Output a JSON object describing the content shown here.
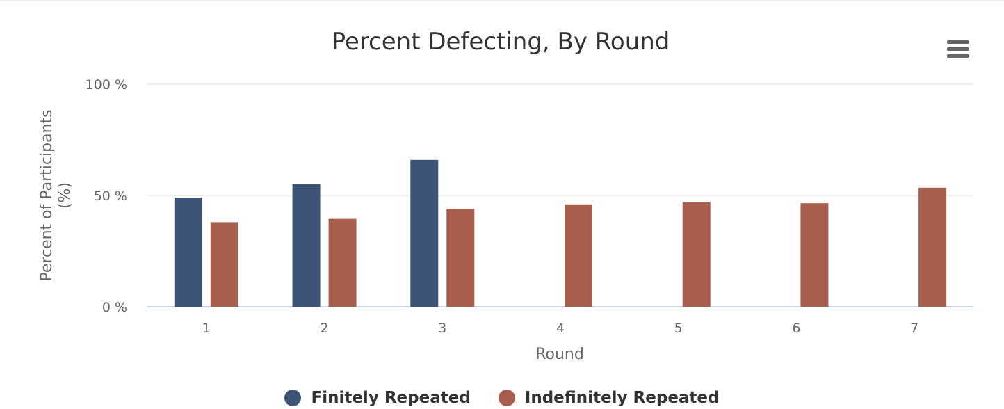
{
  "chart_data": {
    "type": "bar",
    "title": "Percent Defecting, By Round",
    "xlabel": "Round",
    "ylabel": "Percent of Participants (%)",
    "ylabel_lines": [
      "Percent of Participants",
      "(%)"
    ],
    "categories": [
      "1",
      "2",
      "3",
      "4",
      "5",
      "6",
      "7"
    ],
    "ylim": [
      0,
      100
    ],
    "yticks": [
      0,
      50,
      100
    ],
    "ytick_labels": [
      "0 %",
      "50 %",
      "100 %"
    ],
    "grid": true,
    "legend_position": "bottom",
    "series": [
      {
        "name": "Finitely Repeated",
        "color": "#3d5478",
        "values": [
          49,
          55,
          66,
          null,
          null,
          null,
          null
        ]
      },
      {
        "name": "Indefinitely Repeated",
        "color": "#a95d4d",
        "values": [
          38,
          39.5,
          44,
          46,
          47,
          46.5,
          53.5
        ]
      }
    ]
  },
  "menu": {
    "icon": "hamburger-menu-icon"
  }
}
